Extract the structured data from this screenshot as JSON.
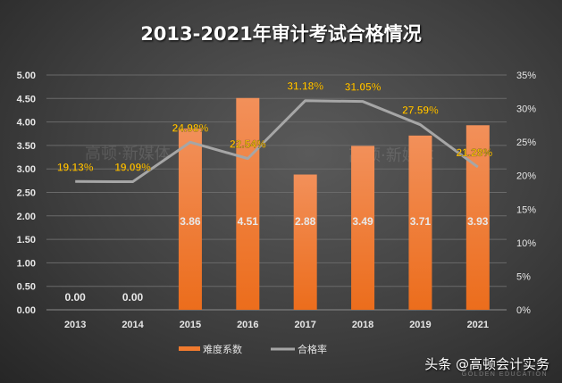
{
  "chart_data": {
    "type": "bar+line",
    "title": "2013-2021年审计考试合格情况",
    "categories": [
      "2013",
      "2014",
      "2015",
      "2016",
      "2017",
      "2018",
      "2019",
      "2021"
    ],
    "series": [
      {
        "name": "难度系数",
        "type": "bar",
        "axis": "left",
        "color": "#f07a2e",
        "values": [
          0.0,
          0.0,
          3.86,
          4.51,
          2.88,
          3.49,
          3.71,
          3.93
        ],
        "labels": [
          "0.00",
          "0.00",
          "3.86",
          "4.51",
          "2.88",
          "3.49",
          "3.71",
          "3.93"
        ]
      },
      {
        "name": "合格率",
        "type": "line",
        "axis": "right",
        "color": "#a6a6a6",
        "values": [
          19.13,
          19.09,
          24.98,
          22.54,
          31.18,
          31.05,
          27.59,
          21.28
        ],
        "labels": [
          "19.13%",
          "19.09%",
          "24.98%",
          "22.54%",
          "31.18%",
          "31.05%",
          "27.59%",
          "21.28%"
        ]
      }
    ],
    "left_axis": {
      "ylim": [
        0,
        5
      ],
      "ticks": [
        "0.00",
        "0.50",
        "1.00",
        "1.50",
        "2.00",
        "2.50",
        "3.00",
        "3.50",
        "4.00",
        "4.50",
        "5.00"
      ]
    },
    "right_axis": {
      "ylim": [
        0,
        35
      ],
      "ticks": [
        "0%",
        "5%",
        "10%",
        "15%",
        "20%",
        "25%",
        "30%",
        "35%"
      ]
    },
    "grid": true,
    "legend_position": "bottom",
    "line_label_color": "#ffc000"
  },
  "watermark": {
    "text": "高顿·新媒体",
    "brand": "GOLDEN EDUCATION"
  },
  "footer": {
    "text": "头条 @高顿会计实务",
    "sub": "GOLDEN EDUCATION"
  }
}
